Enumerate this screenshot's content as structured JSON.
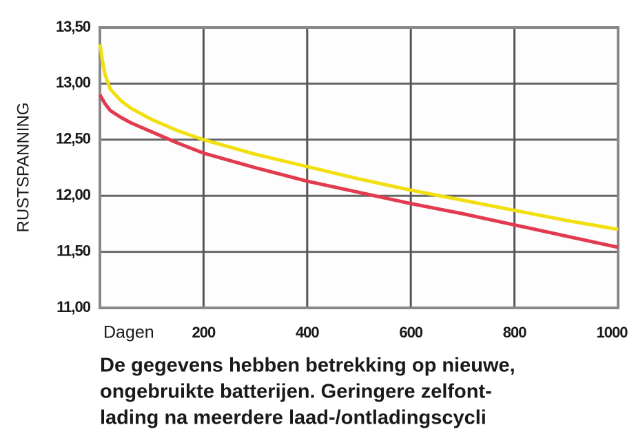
{
  "chart_data": {
    "type": "line",
    "xlabel": "Dagen",
    "ylabel": "RUSTSPANNING",
    "caption": [
      "De gegevens hebben betrekking op nieuwe,",
      "ongebruikte batterijen. Geringere zelfont-",
      "lading na meerdere laad-/ontladingscycli"
    ],
    "x": [
      0,
      5,
      10,
      20,
      40,
      60,
      100,
      150,
      200,
      300,
      400,
      500,
      600,
      700,
      800,
      900,
      1000
    ],
    "series": [
      {
        "color": "#f2df10",
        "values": [
          13.35,
          13.2,
          13.08,
          12.95,
          12.85,
          12.78,
          12.68,
          12.58,
          12.5,
          12.37,
          12.26,
          12.15,
          12.05,
          11.96,
          11.87,
          11.78,
          11.7
        ]
      },
      {
        "color": "#e23a4e",
        "values": [
          12.9,
          12.86,
          12.82,
          12.76,
          12.7,
          12.65,
          12.57,
          12.47,
          12.38,
          12.25,
          12.13,
          12.03,
          11.93,
          11.84,
          11.74,
          11.64,
          11.54
        ]
      }
    ],
    "xlim": [
      0,
      1000
    ],
    "xticks": [
      200,
      400,
      600,
      800,
      1000
    ],
    "ylim": [
      11,
      13.5
    ],
    "yticks": [
      {
        "value": 11,
        "label": "11,00"
      },
      {
        "value": 11.5,
        "label": "11,50"
      },
      {
        "value": 12,
        "label": "12,00"
      },
      {
        "value": 12.5,
        "label": "12,50"
      },
      {
        "value": 13,
        "label": "13,00"
      },
      {
        "value": 13.5,
        "label": "13,50"
      }
    ],
    "grid": true
  }
}
